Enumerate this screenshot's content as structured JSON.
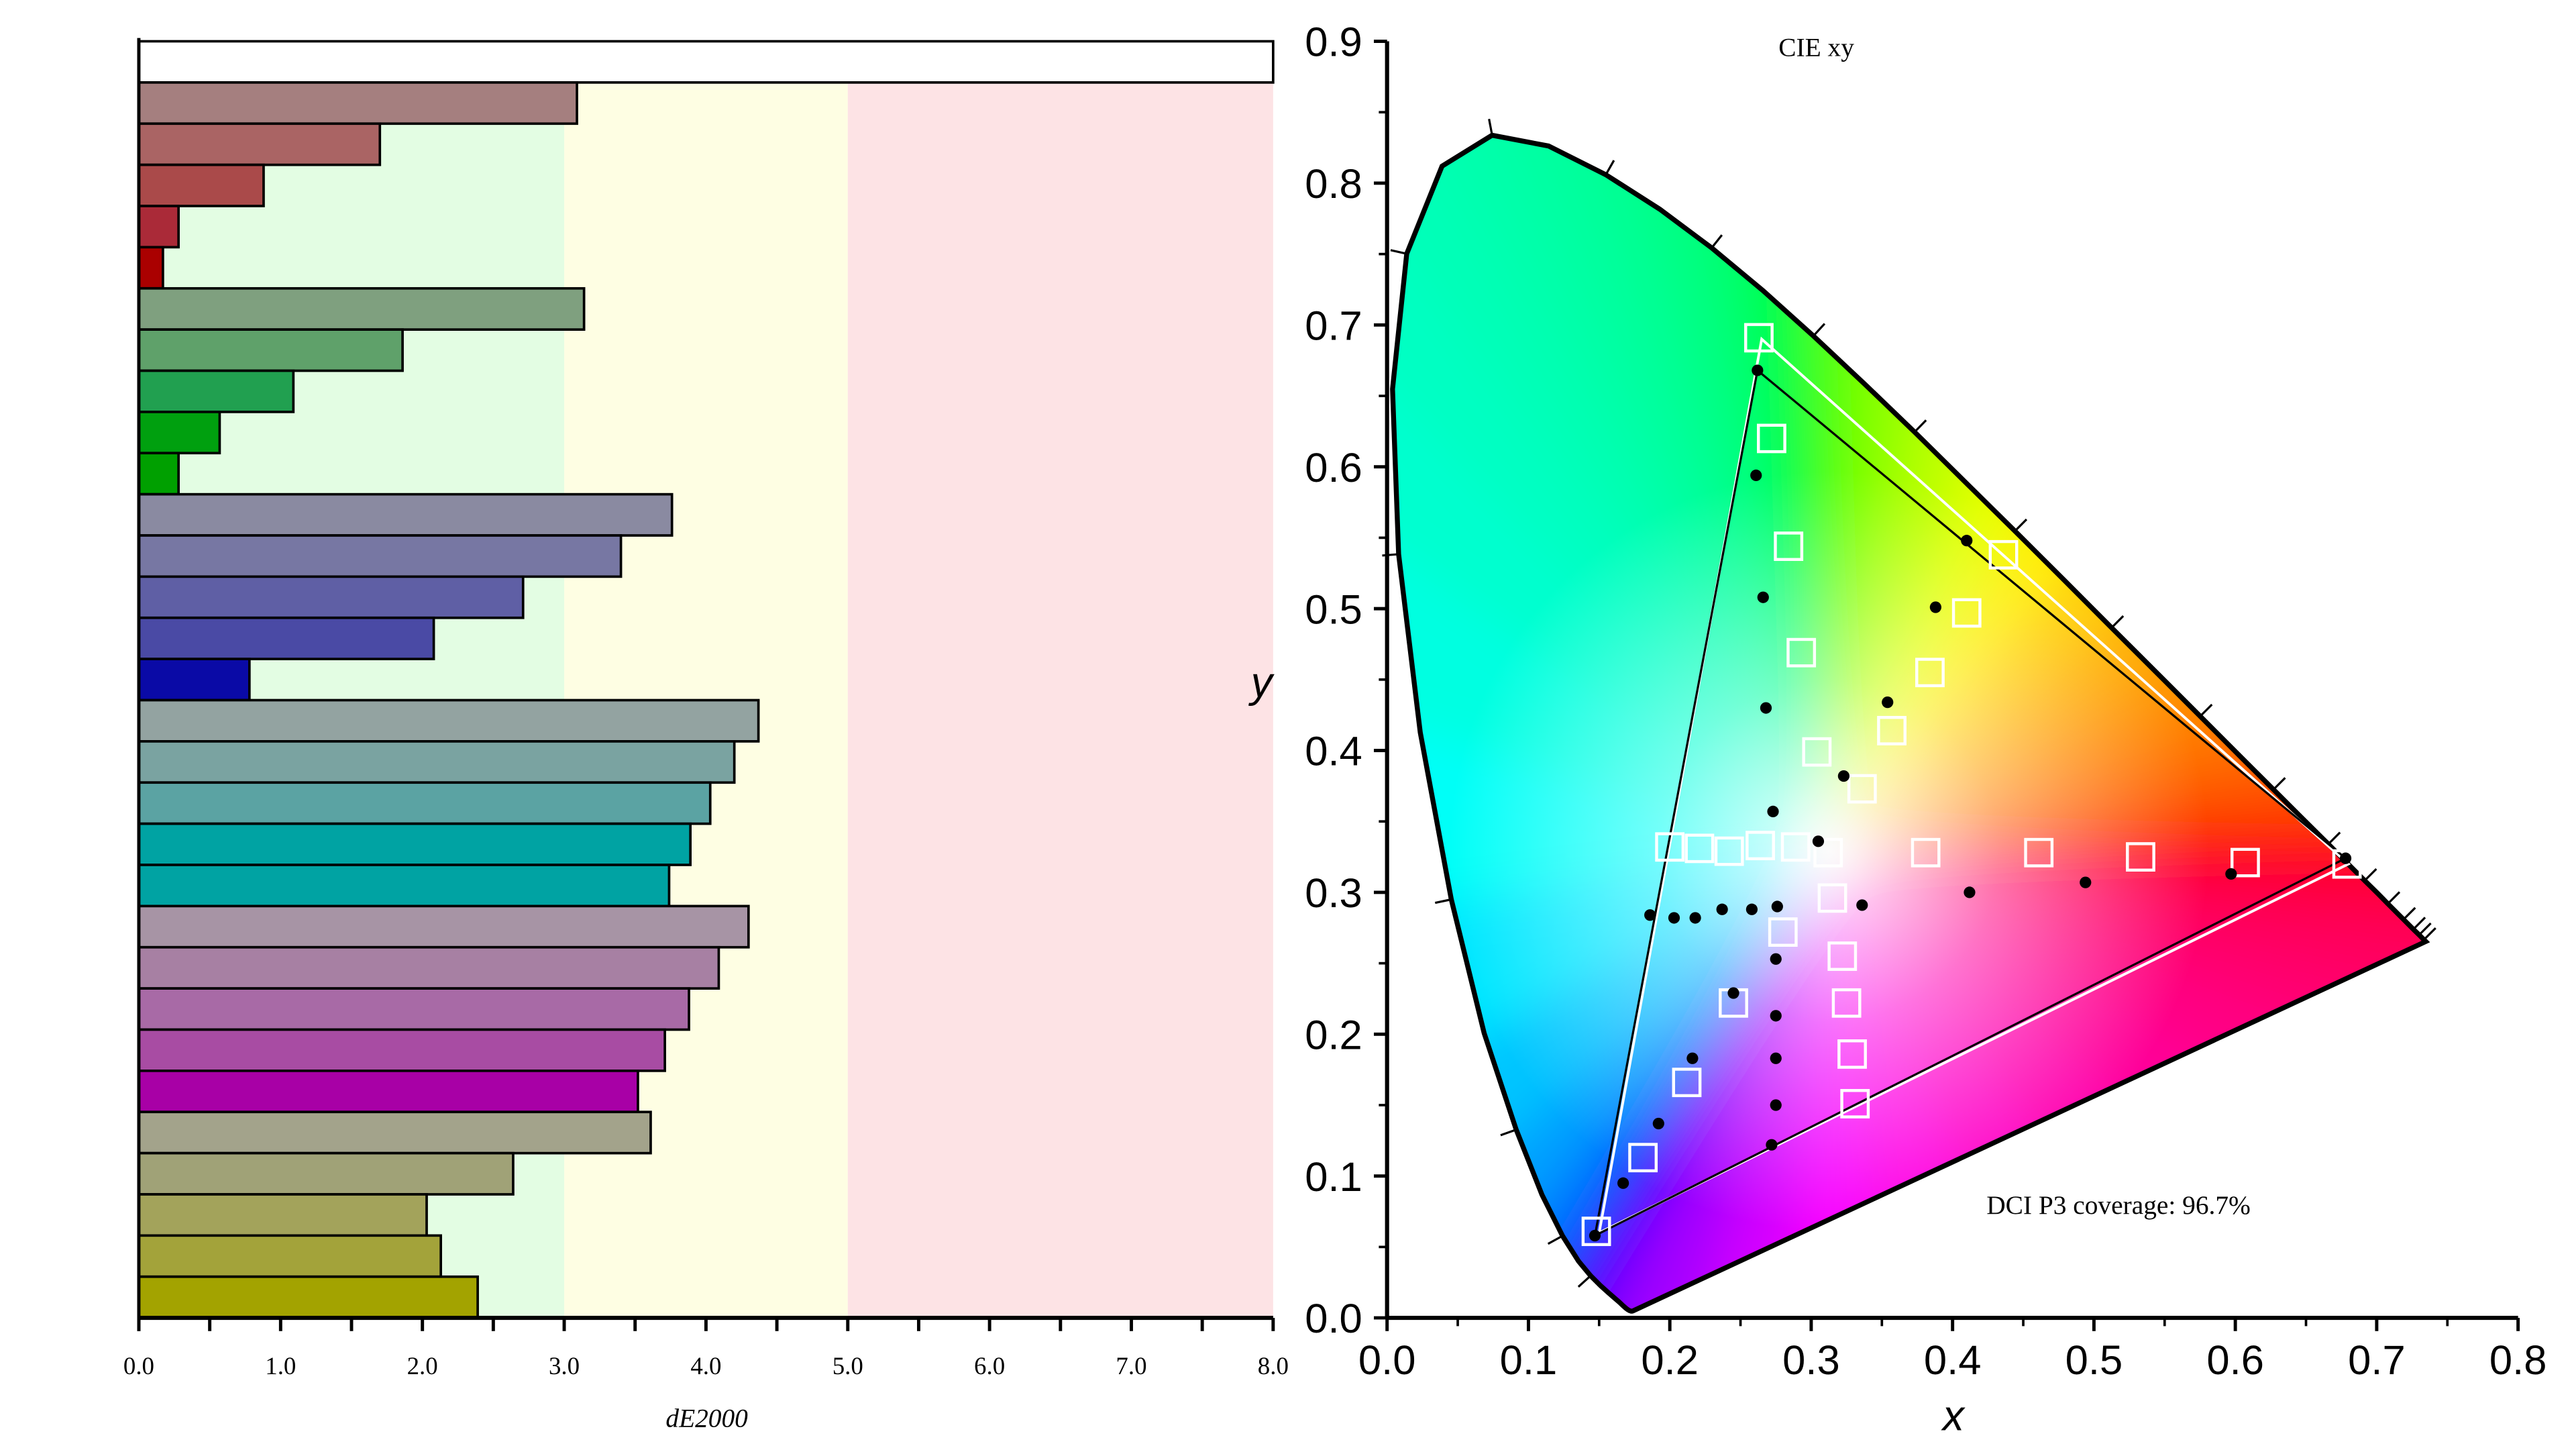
{
  "chart_data": [
    {
      "type": "bar",
      "orientation": "horizontal",
      "xlabel": "dE2000",
      "xlim": [
        0,
        8
      ],
      "xticks": [
        "0.0",
        "1.0",
        "2.0",
        "3.0",
        "4.0",
        "5.0",
        "6.0",
        "7.0",
        "8.0"
      ],
      "bands": [
        {
          "from": 0,
          "to": 3,
          "color": "#e3fde3"
        },
        {
          "from": 3,
          "to": 5,
          "color": "#fefee3"
        },
        {
          "from": 5,
          "to": 8,
          "color": "#fde3e5"
        }
      ],
      "header_bar": {
        "value": 8.0,
        "color": "#ffffff"
      },
      "series": [
        {
          "name": "red",
          "values": [
            3.09,
            1.7,
            0.88,
            0.28,
            0.17
          ],
          "colors": [
            "#a57f7f",
            "#aa6464",
            "#aa4a4a",
            "#aa2a38",
            "#aa0000"
          ]
        },
        {
          "name": "green",
          "values": [
            3.14,
            1.86,
            1.09,
            0.57,
            0.28
          ],
          "colors": [
            "#7fa07f",
            "#5fa16a",
            "#21a050",
            "#00a00f",
            "#00a000"
          ]
        },
        {
          "name": "blue",
          "values": [
            3.76,
            3.4,
            2.71,
            2.08,
            0.78
          ],
          "colors": [
            "#8a8aa1",
            "#7777a3",
            "#5f5fa5",
            "#4a4aa5",
            "#0a0aa6"
          ]
        },
        {
          "name": "cyan",
          "values": [
            4.37,
            4.2,
            4.03,
            3.89,
            3.74
          ],
          "colors": [
            "#93a3a1",
            "#7aa3a1",
            "#5ba3a3",
            "#00a3a3",
            "#00a3a3"
          ]
        },
        {
          "name": "magenta",
          "values": [
            4.3,
            4.09,
            3.88,
            3.71,
            3.52
          ],
          "colors": [
            "#a794a5",
            "#a780a3",
            "#a86aa6",
            "#a84ca3",
            "#a800a6"
          ]
        },
        {
          "name": "yellow",
          "values": [
            3.61,
            2.64,
            2.03,
            2.13,
            2.39
          ],
          "colors": [
            "#a3a38b",
            "#a0a277",
            "#a3a35b",
            "#a3a33a",
            "#a3a300"
          ]
        }
      ]
    },
    {
      "type": "scatter",
      "title": "CIE xy",
      "xlabel": "x",
      "ylabel": "y",
      "xlim": [
        0,
        0.8
      ],
      "ylim": [
        0,
        0.9
      ],
      "xticks": [
        "0.0",
        "0.1",
        "0.2",
        "0.3",
        "0.4",
        "0.5",
        "0.6",
        "0.7",
        "0.8"
      ],
      "yticks": [
        "0.0",
        "0.1",
        "0.2",
        "0.3",
        "0.4",
        "0.5",
        "0.6",
        "0.7",
        "0.8",
        "0.9"
      ],
      "annotation": "DCI P3 coverage: 96.7%",
      "target_gamut": [
        [
          0.68,
          0.32
        ],
        [
          0.265,
          0.69
        ],
        [
          0.15,
          0.06
        ]
      ],
      "measured_gamut": [
        [
          0.678,
          0.324
        ],
        [
          0.262,
          0.668
        ],
        [
          0.147,
          0.058
        ]
      ],
      "targets": [
        [
          0.263,
          0.691
        ],
        [
          0.272,
          0.62
        ],
        [
          0.284,
          0.544
        ],
        [
          0.293,
          0.469
        ],
        [
          0.304,
          0.399
        ],
        [
          0.312,
          0.328
        ],
        [
          0.436,
          0.538
        ],
        [
          0.41,
          0.497
        ],
        [
          0.384,
          0.455
        ],
        [
          0.357,
          0.414
        ],
        [
          0.336,
          0.373
        ],
        [
          0.679,
          0.32
        ],
        [
          0.607,
          0.321
        ],
        [
          0.533,
          0.325
        ],
        [
          0.461,
          0.328
        ],
        [
          0.381,
          0.328
        ],
        [
          0.289,
          0.332
        ],
        [
          0.264,
          0.333
        ],
        [
          0.242,
          0.329
        ],
        [
          0.221,
          0.331
        ],
        [
          0.2,
          0.332
        ],
        [
          0.315,
          0.296
        ],
        [
          0.322,
          0.255
        ],
        [
          0.325,
          0.222
        ],
        [
          0.329,
          0.186
        ],
        [
          0.331,
          0.151
        ],
        [
          0.28,
          0.272
        ],
        [
          0.245,
          0.222
        ],
        [
          0.212,
          0.166
        ],
        [
          0.181,
          0.113
        ],
        [
          0.148,
          0.061
        ]
      ],
      "measured": [
        [
          0.262,
          0.668
        ],
        [
          0.261,
          0.594
        ],
        [
          0.266,
          0.508
        ],
        [
          0.268,
          0.43
        ],
        [
          0.273,
          0.357
        ],
        [
          0.305,
          0.336
        ],
        [
          0.323,
          0.382
        ],
        [
          0.354,
          0.434
        ],
        [
          0.388,
          0.501
        ],
        [
          0.41,
          0.548
        ],
        [
          0.412,
          0.3
        ],
        [
          0.494,
          0.307
        ],
        [
          0.597,
          0.313
        ],
        [
          0.678,
          0.324
        ],
        [
          0.336,
          0.291
        ],
        [
          0.276,
          0.29
        ],
        [
          0.258,
          0.288
        ],
        [
          0.237,
          0.288
        ],
        [
          0.218,
          0.282
        ],
        [
          0.203,
          0.282
        ],
        [
          0.186,
          0.284
        ],
        [
          0.275,
          0.253
        ],
        [
          0.245,
          0.229
        ],
        [
          0.275,
          0.213
        ],
        [
          0.216,
          0.183
        ],
        [
          0.275,
          0.183
        ],
        [
          0.275,
          0.15
        ],
        [
          0.192,
          0.137
        ],
        [
          0.272,
          0.122
        ],
        [
          0.167,
          0.095
        ],
        [
          0.147,
          0.058
        ]
      ]
    }
  ]
}
